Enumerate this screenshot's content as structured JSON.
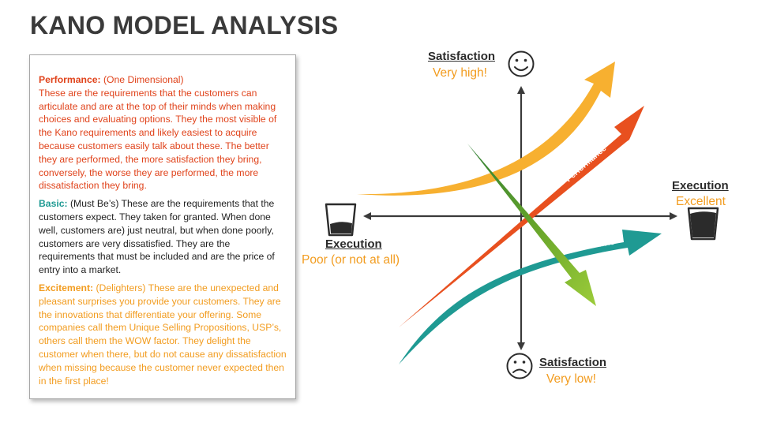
{
  "title": "KANO MODEL ANALYSIS",
  "paragraphs": {
    "performance": {
      "head": "Performance:",
      "paren": " (One Dimensional)",
      "body": "These are the requirements that the customers can articulate and are at the top of their minds when making choices and evaluating options. They the most visible of the Kano requirements and likely easiest to acquire because customers easily talk about these. The better they are performed, the more satisfaction they bring, conversely, the worse they are performed, the more dissatisfaction they bring."
    },
    "basic": {
      "head": "Basic:",
      "body": " (Must Be’s) These are the requirements that the customers expect. They taken for granted. When done well, customers are) just neutral, but when done poorly, customers are very dissatisfied. They are the requirements that must be included and are the price of entry into a market."
    },
    "excitement": {
      "head": "Excitement:",
      "body": " (Delighters) These are the unexpected and pleasant surprises you provide your customers. They are the innovations that differentiate your offering. Some companies call them Unique Selling Propositions, USP’s, others call them the WOW factor. They delight the customer when there, but do not cause any dissatisfaction when missing because the customer never expected then in the first place!"
    }
  },
  "axes": {
    "top": {
      "title": "Satisfaction",
      "value": "Very high!"
    },
    "bottom": {
      "title": "Satisfaction",
      "value": "Very low!"
    },
    "right": {
      "title": "Execution",
      "value": "Excellent"
    },
    "left": {
      "title": "Execution",
      "value": "Poor (or not at all)"
    }
  },
  "curves": {
    "excitement": "Excitement",
    "performance": "Performance",
    "basic": "Basic"
  },
  "colors": {
    "performance": "#e8501f",
    "basic": "#1f9a93",
    "excitement": "#f7b030",
    "green": "#7cb82f",
    "text_orange": "#f29c1f"
  }
}
